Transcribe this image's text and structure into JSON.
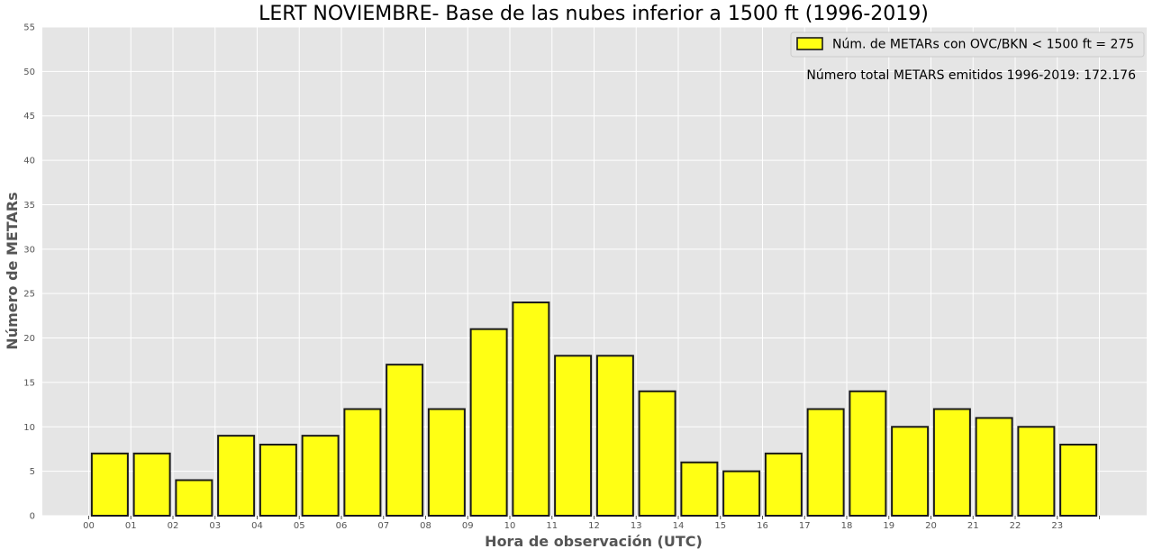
{
  "chart_data": {
    "type": "bar",
    "title": "LERT NOVIEMBRE- Base de las nubes inferior a 1500 ft (1996-2019)",
    "xlabel": "Hora de observación (UTC)",
    "ylabel": "Número de METARs",
    "categories": [
      "00",
      "01",
      "02",
      "03",
      "04",
      "05",
      "06",
      "07",
      "08",
      "09",
      "10",
      "11",
      "12",
      "13",
      "14",
      "15",
      "16",
      "17",
      "18",
      "19",
      "20",
      "21",
      "22",
      "23"
    ],
    "series": [
      {
        "name": "Núm. de METARs con OVC/BKN < 1500 ft = 275",
        "values": [
          7,
          7,
          4,
          9,
          8,
          9,
          12,
          17,
          12,
          21,
          24,
          18,
          18,
          14,
          6,
          5,
          7,
          12,
          14,
          10,
          12,
          11,
          10,
          8
        ]
      }
    ],
    "ylim": [
      0,
      55
    ],
    "yticks": [
      0,
      5,
      10,
      15,
      20,
      25,
      30,
      35,
      40,
      45,
      50,
      55
    ],
    "annotation": "Número total METARS emitidos 1996-2019: 172.176",
    "legend_position": "top-right",
    "grid": true,
    "colors": {
      "bar_fill": "#ffff14",
      "bar_edge": "#1a1a1a",
      "plot_background": "#e5e5e5",
      "grid": "#ffffff",
      "axis_label": "#555555",
      "tick_label": "#555555",
      "title": "#000000"
    }
  }
}
